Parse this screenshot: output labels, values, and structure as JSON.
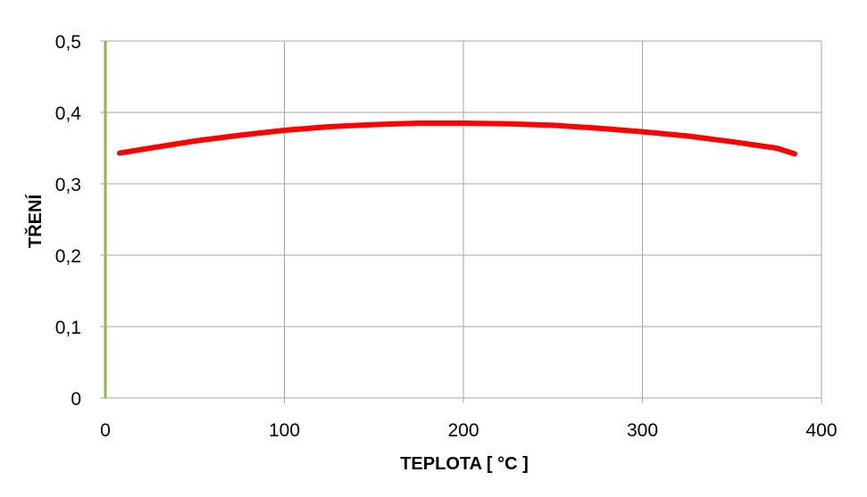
{
  "chart_data": {
    "type": "line",
    "xlabel": "TEPLOTA [ °C ]",
    "ylabel": "TŘENÍ",
    "xlim": [
      0,
      400
    ],
    "ylim": [
      0,
      0.5
    ],
    "x_ticks": [
      0,
      100,
      200,
      300,
      400
    ],
    "y_ticks": [
      0,
      0.1,
      0.2,
      0.3,
      0.4,
      0.5
    ],
    "x_tick_labels": [
      "0",
      "100",
      "200",
      "300",
      "400"
    ],
    "y_tick_labels": [
      "0",
      "0,1",
      "0,2",
      "0,3",
      "0,4",
      "0,5"
    ],
    "grid": true,
    "legend": "none",
    "series": [
      {
        "color": "#ff0000",
        "x": [
          8,
          25,
          50,
          75,
          100,
          125,
          150,
          175,
          200,
          225,
          250,
          275,
          300,
          325,
          350,
          375,
          385
        ],
        "y": [
          0.343,
          0.35,
          0.36,
          0.368,
          0.375,
          0.38,
          0.383,
          0.385,
          0.385,
          0.384,
          0.382,
          0.378,
          0.373,
          0.367,
          0.359,
          0.35,
          0.342
        ]
      }
    ],
    "y_axis_color": "#8db84a"
  }
}
